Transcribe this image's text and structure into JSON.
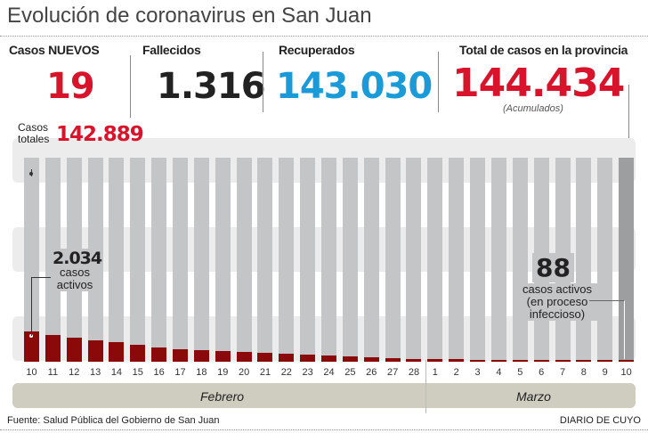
{
  "title": "Evolución de coronavirus en San Juan",
  "stats": {
    "new_label": "Casos NUEVOS",
    "new_value": "19",
    "deaths_label": "Fallecidos",
    "deaths_value": "1.316",
    "recovered_label": "Recuperados",
    "recovered_value": "143.030",
    "total_label": "Total de casos en la provincia",
    "total_value": "144.434",
    "total_note": "(Acumulados)"
  },
  "colors": {
    "red": "#d7142b",
    "blue": "#1a9ad6",
    "active": "#8a0a0a",
    "total_bar": "#c4c5c7",
    "last_bar": "#9d9e9f"
  },
  "chart_data": {
    "type": "bar",
    "categories": [
      "10",
      "11",
      "12",
      "13",
      "14",
      "15",
      "16",
      "17",
      "18",
      "19",
      "20",
      "21",
      "22",
      "23",
      "24",
      "25",
      "26",
      "27",
      "28",
      "1",
      "2",
      "3",
      "4",
      "5",
      "6",
      "7",
      "8",
      "9",
      "10"
    ],
    "months": [
      "Febrero",
      "Marzo"
    ],
    "series": [
      {
        "name": "Casos totales",
        "values": [
          142889,
          142889,
          142889,
          142889,
          142889,
          142889,
          142889,
          142889,
          142889,
          142889,
          142889,
          142889,
          142889,
          142889,
          142889,
          142889,
          142889,
          142889,
          142889,
          142889,
          142889,
          142889,
          142889,
          142889,
          142889,
          142889,
          142889,
          142889,
          144434
        ]
      },
      {
        "name": "casos activos",
        "values": [
          2034,
          1800,
          1620,
          1450,
          1300,
          1120,
          960,
          850,
          760,
          700,
          640,
          590,
          520,
          450,
          400,
          330,
          280,
          240,
          200,
          170,
          150,
          130,
          120,
          110,
          100,
          95,
          92,
          90,
          88
        ]
      }
    ],
    "annotations": {
      "total_label": "Casos totales",
      "total_first": "142.889",
      "active_first": "2.034",
      "active_first_label": "casos activos",
      "active_last": "88",
      "active_last_label1": "casos activos",
      "active_last_label2": "(en proceso",
      "active_last_label3": "infeccioso)"
    }
  },
  "footer": {
    "source": "Fuente: Salud Pública del Gobierno de San Juan",
    "brand": "DIARIO DE CUYO"
  }
}
